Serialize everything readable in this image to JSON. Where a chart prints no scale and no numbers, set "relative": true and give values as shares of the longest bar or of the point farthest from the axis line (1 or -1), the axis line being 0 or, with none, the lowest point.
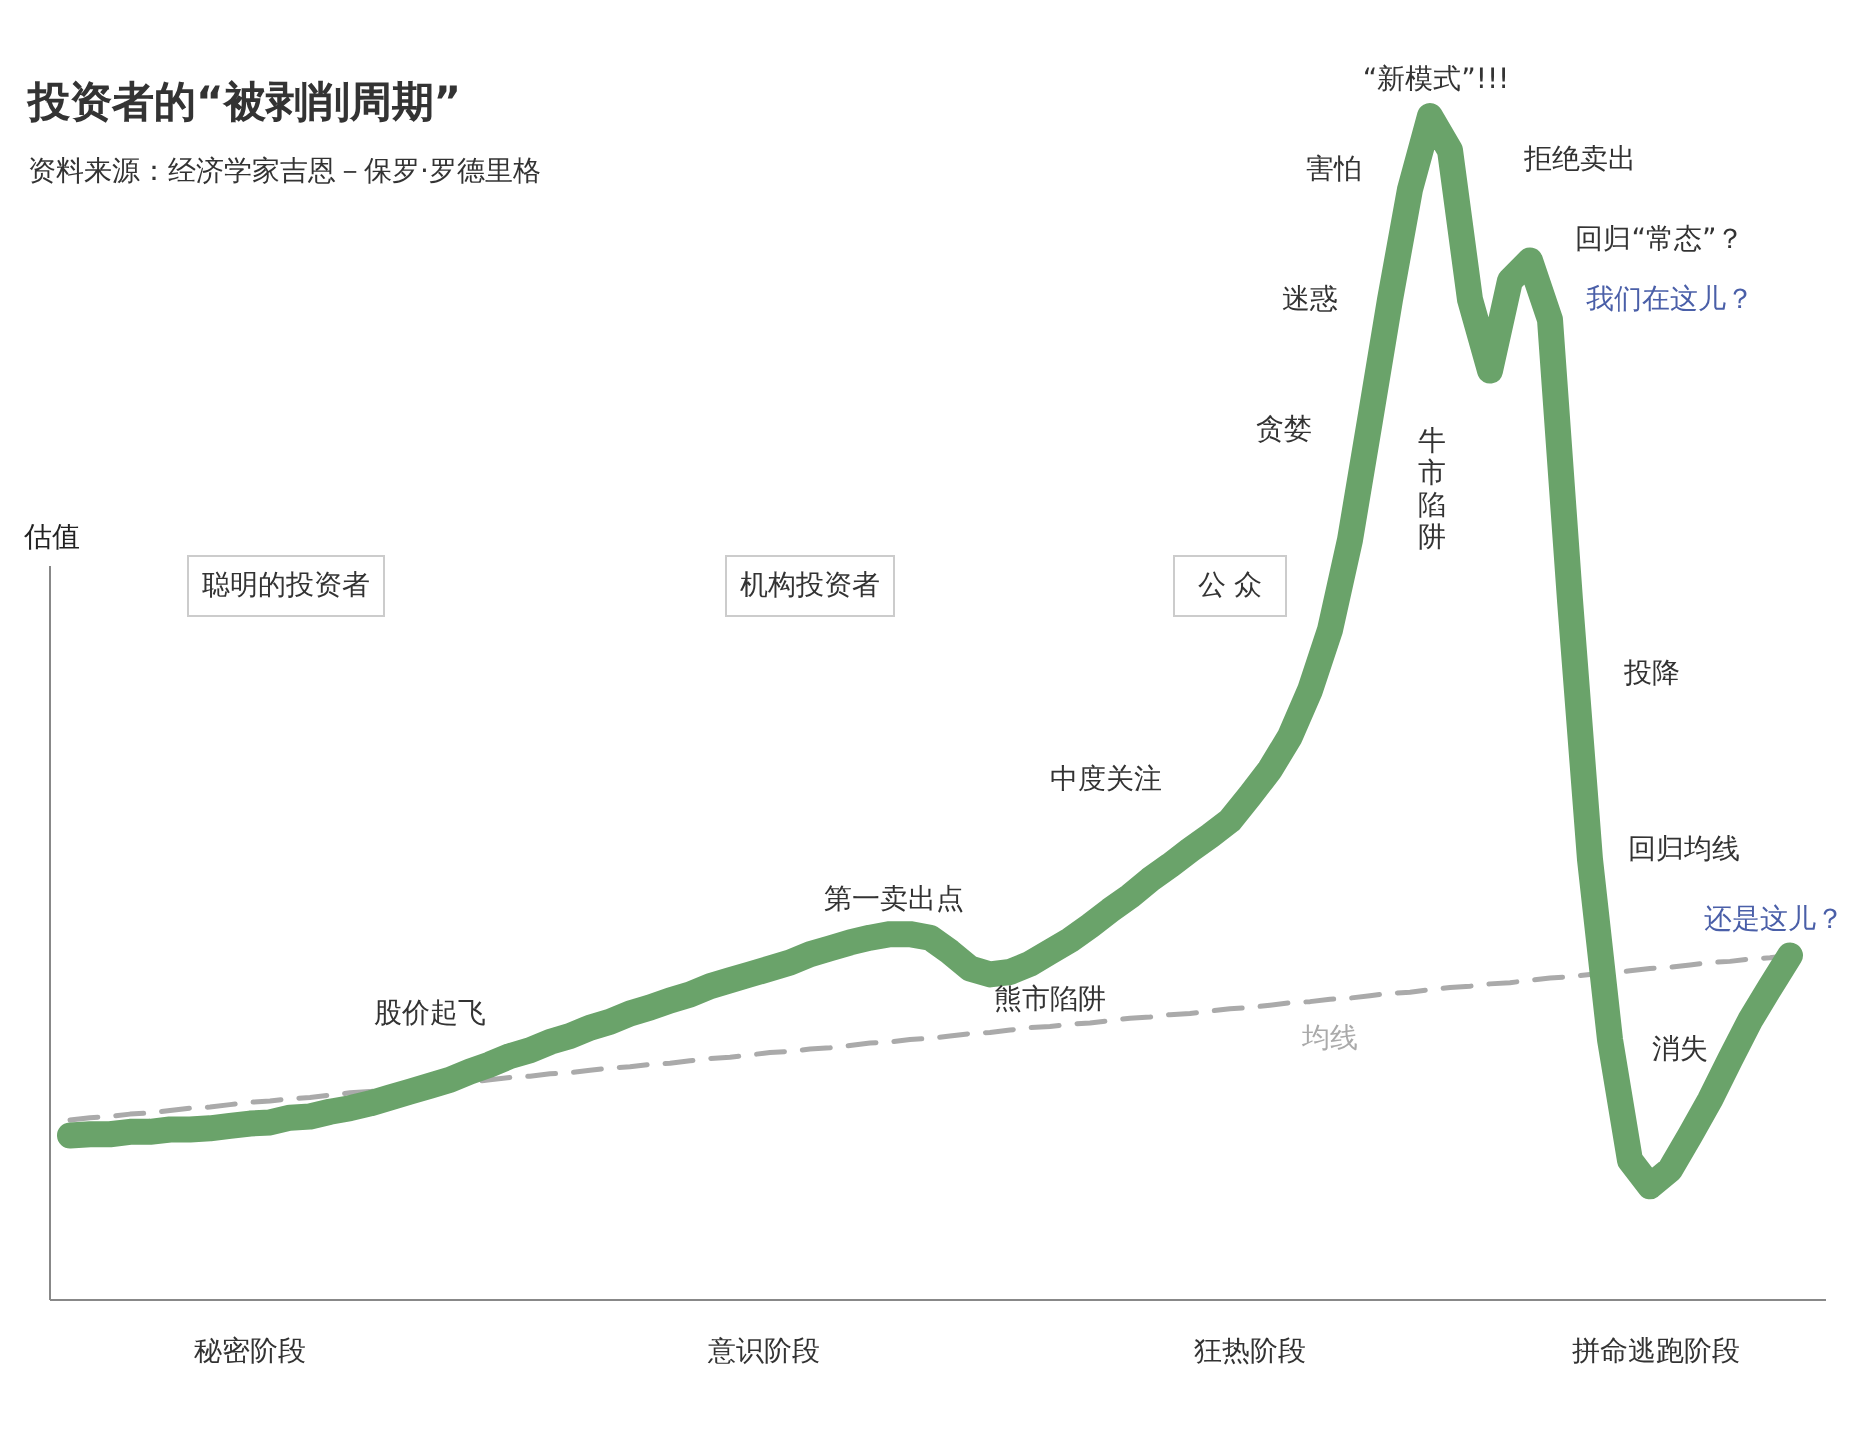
{
  "chart_data": {
    "type": "line",
    "title": "投资者的“被剥削周期”",
    "subtitle": "资料来源：经济学家吉恩－保罗·罗德里格",
    "ylabel": "估值",
    "relative": true,
    "categories": [
      null,
      null,
      null,
      null,
      null,
      null,
      null,
      null,
      null,
      null,
      null,
      null,
      null,
      null,
      null,
      null,
      null,
      null,
      null,
      null,
      null,
      null,
      null,
      null,
      null,
      null,
      null,
      null,
      null,
      null,
      null,
      null,
      null,
      null,
      null,
      null,
      null,
      null,
      null,
      null,
      null,
      null,
      null,
      null,
      null,
      null,
      null,
      null,
      null,
      null,
      null,
      null,
      null,
      null,
      null,
      null,
      null,
      null,
      null,
      null,
      null,
      null,
      null,
      null,
      null,
      null,
      null,
      null,
      null,
      null,
      null,
      null,
      null,
      null,
      null,
      null,
      null,
      null,
      null,
      null,
      null,
      null,
      null,
      null,
      null,
      null,
      null
    ],
    "series": [
      {
        "color": "#6aa36a",
        "line_style": "solid",
        "values": [
          0.139,
          0.14,
          0.14,
          0.142,
          0.142,
          0.144,
          0.144,
          0.145,
          0.147,
          0.149,
          0.15,
          0.154,
          0.155,
          0.159,
          0.162,
          0.166,
          0.171,
          0.176,
          0.181,
          0.186,
          0.193,
          0.199,
          0.206,
          0.211,
          0.218,
          0.223,
          0.23,
          0.235,
          0.242,
          0.247,
          0.253,
          0.258,
          0.265,
          0.27,
          0.275,
          0.28,
          0.285,
          0.292,
          0.297,
          0.302,
          0.306,
          0.309,
          0.309,
          0.306,
          0.294,
          0.28,
          0.275,
          0.277,
          0.284,
          0.294,
          0.304,
          0.316,
          0.329,
          0.341,
          0.355,
          0.367,
          0.38,
          0.392,
          0.405,
          0.426,
          0.448,
          0.476,
          0.515,
          0.566,
          0.642,
          0.743,
          0.845,
          0.938,
          1,
          0.971,
          0.845,
          0.785,
          0.861,
          0.878,
          0.828,
          0.591,
          0.372,
          0.22,
          0.118,
          0.096,
          0.11,
          0.139,
          0.169,
          0.203,
          0.236,
          0.264,
          0.291
        ]
      },
      {
        "name": "均线",
        "color": "#aaaaaa",
        "line_style": "dashed",
        "values": [
          0.152,
          0.154,
          0.155,
          0.157,
          0.158,
          0.16,
          0.162,
          0.163,
          0.165,
          0.167,
          0.168,
          0.17,
          0.171,
          0.173,
          0.175,
          0.176,
          0.178,
          0.179,
          0.181,
          0.183,
          0.184,
          0.186,
          0.188,
          0.189,
          0.191,
          0.192,
          0.194,
          0.196,
          0.197,
          0.199,
          0.2,
          0.202,
          0.204,
          0.205,
          0.207,
          0.209,
          0.21,
          0.212,
          0.213,
          0.215,
          0.217,
          0.218,
          0.22,
          0.221,
          0.223,
          0.225,
          0.226,
          0.228,
          0.23,
          0.231,
          0.233,
          0.234,
          0.236,
          0.238,
          0.239,
          0.241,
          0.242,
          0.244,
          0.246,
          0.247,
          0.249,
          0.251,
          0.252,
          0.254,
          0.255,
          0.257,
          0.259,
          0.26,
          0.262,
          0.264,
          0.265,
          0.267,
          0.268,
          0.27,
          0.272,
          0.273,
          0.275,
          0.276,
          0.278,
          0.28,
          0.281,
          0.283,
          0.285,
          0.286,
          0.288,
          0.289,
          0.291
        ]
      }
    ],
    "annotations": [
      "聪明的投资者",
      "机构投资者",
      "公 众",
      "股价起飞",
      "第一卖出点",
      "熊市陷阱",
      "中度关注",
      "贪婪",
      "迷惑",
      "害怕",
      "“新模式”!!!",
      "拒绝卖出",
      "回归“常态”？",
      "我们在这儿？",
      "牛市陷阱",
      "投降",
      "回归均线",
      "消失",
      "还是这儿？",
      "秘密阶段",
      "意识阶段",
      "狂热阶段",
      "拼命逃跑阶段"
    ]
  }
}
